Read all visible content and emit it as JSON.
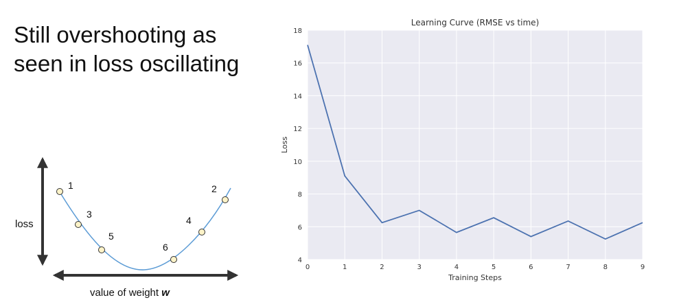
{
  "slide": {
    "title_line1": "Still overshooting as",
    "title_line2": "seen in loss oscillating"
  },
  "diagram": {
    "y_label": "loss",
    "x_label_prefix": "value of weight ",
    "x_label_var": "w",
    "point_labels": [
      "1",
      "2",
      "3",
      "4",
      "5",
      "6"
    ],
    "colors": {
      "curve": "#5b9bd5",
      "point_fill": "#fdf3c8",
      "arrow": "#333333"
    }
  },
  "chart_data": {
    "type": "line",
    "title": "Learning Curve (RMSE vs time)",
    "xlabel": "Training Steps",
    "ylabel": "Loss",
    "xlim": [
      0,
      9
    ],
    "ylim": [
      4,
      18
    ],
    "xticks": [
      "0",
      "1",
      "2",
      "3",
      "4",
      "5",
      "6",
      "7",
      "8",
      "9"
    ],
    "yticks": [
      "4",
      "6",
      "8",
      "10",
      "12",
      "14",
      "16",
      "18"
    ],
    "grid": true,
    "x": [
      0,
      1,
      2,
      3,
      4,
      5,
      6,
      7,
      8,
      9
    ],
    "values": [
      17.1,
      9.1,
      6.25,
      7.0,
      5.65,
      6.55,
      5.4,
      6.35,
      5.25,
      6.25
    ],
    "colors": {
      "line": "#4c72b0",
      "plot_background": "#eaeaf2",
      "grid": "#ffffff"
    }
  }
}
